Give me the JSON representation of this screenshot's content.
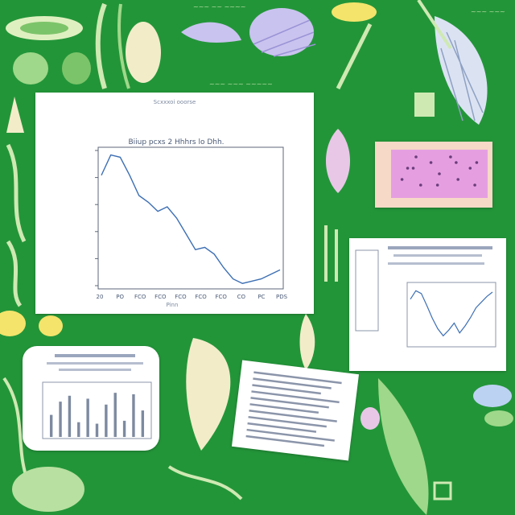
{
  "colors": {
    "background": "#1f8f35",
    "cream": "#f2ecc9",
    "pale_green": "#cfe9b3",
    "lavender": "#c9c3ef",
    "chart_line": "#3d6fb4",
    "pink_chart": "#e59fe1",
    "yellow": "#f4e46b"
  },
  "main_chart": {
    "header": "Scxxxoi ooorse",
    "title": "Biiup pcxs 2 Hhhrs lo Dhh.",
    "xlabel": "Pinn",
    "tick_labels": [
      "20",
      "PO",
      "FCO",
      "FCO",
      "FCO",
      "FCO",
      "FCO",
      "CO",
      "PC",
      "PDS"
    ]
  },
  "chart_data": [
    {
      "type": "line",
      "title": "Biiup pcxs 2 Hhhrs lo Dhh.",
      "xlabel": "Pinn",
      "x": [
        0,
        1,
        2,
        3,
        4,
        5,
        6,
        7,
        8,
        9,
        10,
        11,
        12,
        13,
        14,
        15,
        16,
        17,
        18,
        19
      ],
      "y": [
        49,
        58,
        57,
        49,
        40,
        37,
        33,
        35,
        30,
        23,
        16,
        17,
        14,
        8,
        3,
        1,
        2,
        3,
        5,
        7
      ],
      "ylim": [
        0,
        60
      ]
    },
    {
      "type": "line",
      "x": [
        0,
        1,
        2,
        3,
        4,
        5,
        6,
        7,
        8,
        9,
        10,
        11,
        12,
        13,
        14,
        15
      ],
      "y": [
        62,
        74,
        70,
        53,
        35,
        20,
        10,
        18,
        28,
        14,
        24,
        36,
        50,
        58,
        66,
        72
      ],
      "ylim": [
        0,
        80
      ]
    },
    {
      "type": "bar",
      "values": [
        30,
        48,
        56,
        20,
        52,
        18,
        44,
        60,
        22,
        58,
        36
      ],
      "ylim": [
        0,
        70
      ]
    },
    {
      "type": "scatter",
      "x": [
        1,
        2.2,
        3,
        4.1,
        5,
        6.2,
        7,
        8.3,
        9,
        2.5,
        4.8,
        6.8,
        8.8,
        1.6
      ],
      "y": [
        3,
        5,
        2,
        6,
        4,
        7,
        3,
        5,
        6,
        7,
        2,
        6,
        2,
        5
      ],
      "xlim": [
        0,
        10
      ],
      "ylim": [
        0,
        8
      ]
    }
  ]
}
